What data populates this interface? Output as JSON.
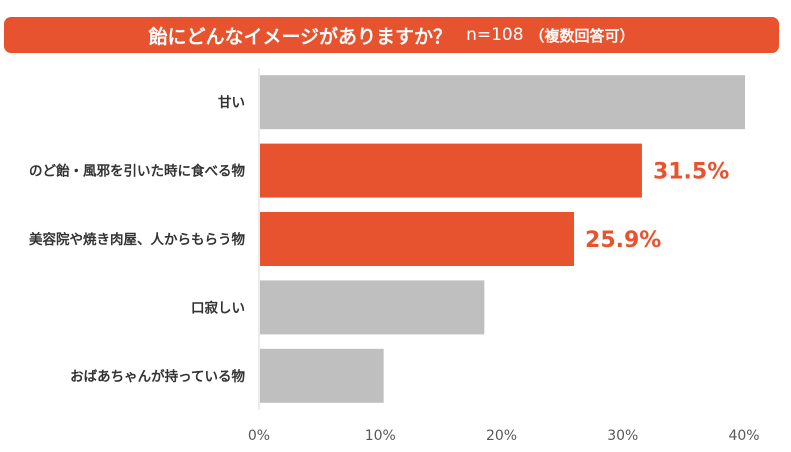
{
  "chart_data": {
    "type": "bar",
    "orientation": "horizontal",
    "title": "飴にどんなイメージがありますか？",
    "sample": "n=108",
    "note": "（複数回答可）",
    "categories": [
      "甘い",
      "のど飴・風邪を引いた時に食べる物",
      "美容院や焼き肉屋、人からもらう物",
      "口寂しい",
      "おばあちゃんが持っている物"
    ],
    "values": [
      40.0,
      31.5,
      25.9,
      18.5,
      10.2
    ],
    "highlighted": [
      false,
      true,
      true,
      false,
      false
    ],
    "data_labels": [
      "",
      "31.5%",
      "25.9%",
      "",
      ""
    ],
    "xlim": [
      0,
      40
    ],
    "xticks": [
      "0%",
      "10%",
      "20%",
      "30%",
      "40%"
    ],
    "grid": false,
    "colors": {
      "highlight": "#e8532f",
      "normal": "#bfbfbf",
      "axis": "#d9d9d9",
      "banner": "#e8532f"
    }
  }
}
